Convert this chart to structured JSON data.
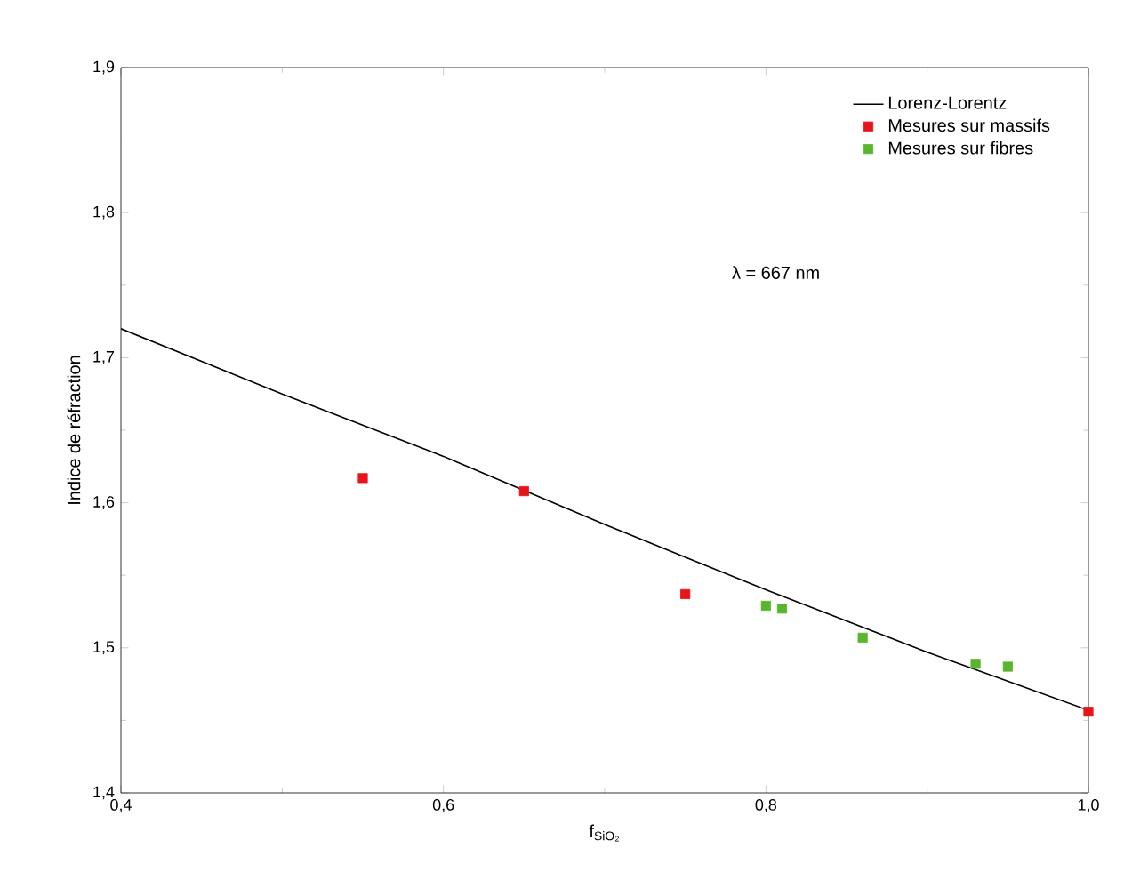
{
  "chart_data": {
    "type": "scatter",
    "xlabel": "f$_{SiO₂}$",
    "ylabel": "Indice de réfraction",
    "xlim": [
      0.4,
      1.0
    ],
    "ylim": [
      1.4,
      1.9
    ],
    "xticks": [
      {
        "value": 0.4,
        "label": "0,4"
      },
      {
        "value": 0.6,
        "label": "0,6"
      },
      {
        "value": 0.8,
        "label": "0,8"
      },
      {
        "value": 1.0,
        "label": "1,0"
      }
    ],
    "yticks": [
      {
        "value": 1.4,
        "label": "1,4"
      },
      {
        "value": 1.5,
        "label": "1,5"
      },
      {
        "value": 1.6,
        "label": "1,6"
      },
      {
        "value": 1.7,
        "label": "1,7"
      },
      {
        "value": 1.8,
        "label": "1,8"
      },
      {
        "value": 1.9,
        "label": "1,9"
      }
    ],
    "series": [
      {
        "name": "Lorenz-Lorentz",
        "type": "line",
        "color": "#000000",
        "marker": "none",
        "x": [
          0.4,
          0.5,
          0.6,
          0.7,
          0.8,
          0.9,
          1.0
        ],
        "values": [
          1.72,
          1.675,
          1.632,
          1.585,
          1.54,
          1.497,
          1.457
        ]
      },
      {
        "name": "Mesures sur massifs",
        "color": "#e8141c",
        "marker": "square",
        "x": [
          0.55,
          0.65,
          0.75,
          1.0
        ],
        "values": [
          1.617,
          1.608,
          1.537,
          1.456
        ]
      },
      {
        "name": "Mesures sur fibres",
        "color": "#5ab52e",
        "marker": "square",
        "x": [
          0.8,
          0.81,
          0.86,
          0.93,
          0.95
        ],
        "values": [
          1.529,
          1.527,
          1.507,
          1.489,
          1.487
        ]
      }
    ],
    "annotations": [
      "λ =  667 nm"
    ],
    "legend": "top right",
    "grid": false
  }
}
